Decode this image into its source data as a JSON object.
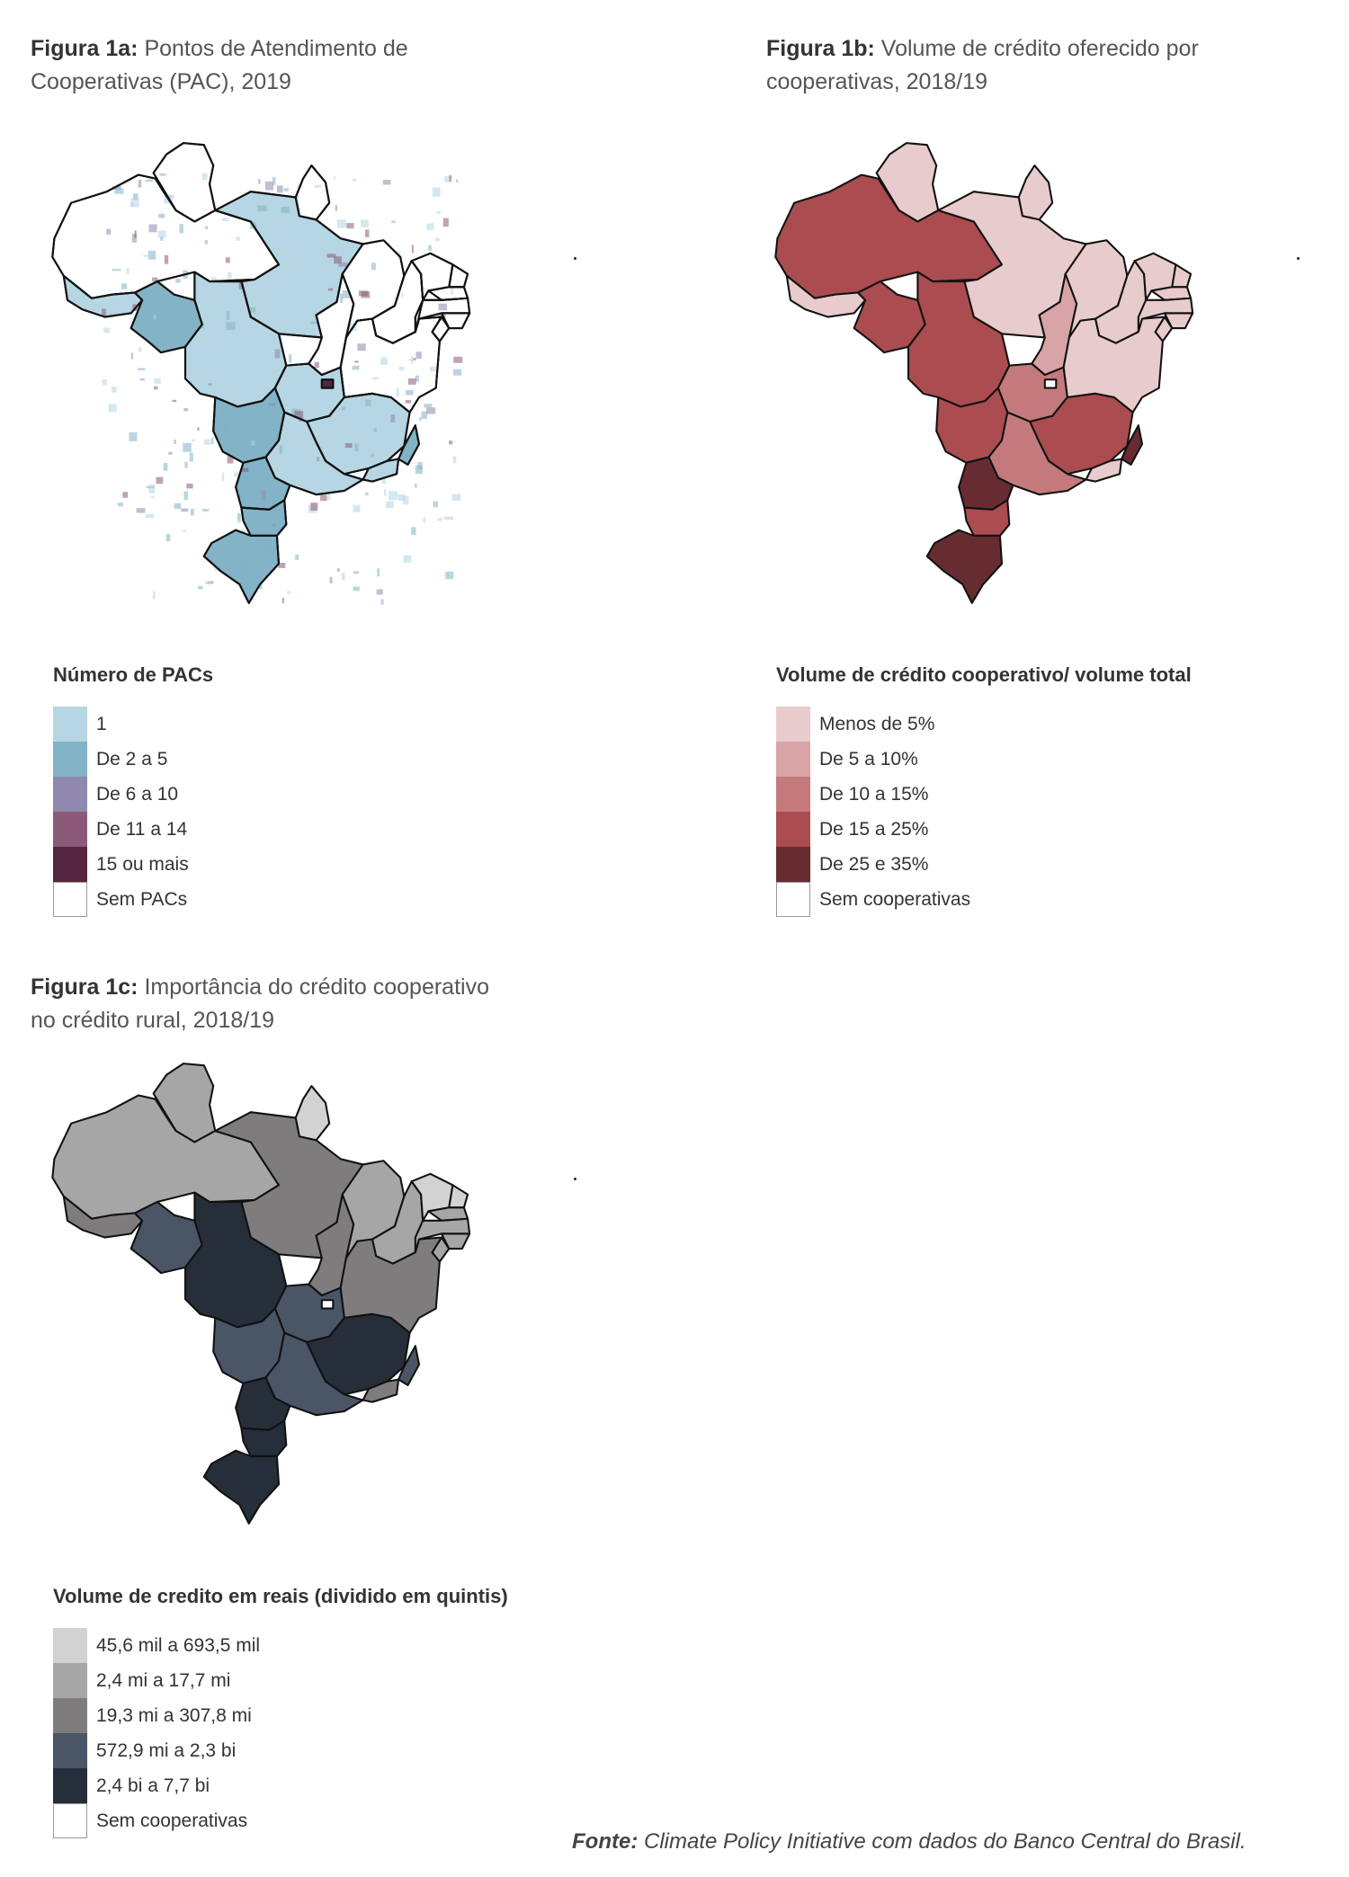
{
  "figures": [
    {
      "label": "Figura 1a:",
      "title_line1": "Pontos de Atendimento de",
      "title_line2": "Cooperativas (PAC), 2019",
      "legend_title": "Número de PACs",
      "legend": [
        {
          "label": "1",
          "color": "#b5d6e2"
        },
        {
          "label": "De 2 a 5",
          "color": "#82b3c6"
        },
        {
          "label": "De 6 a 10",
          "color": "#9189ad"
        },
        {
          "label": "De 11 a 14",
          "color": "#8a5a78"
        },
        {
          "label": "15 ou mais",
          "color": "#54263f"
        },
        {
          "label": "Sem PACs",
          "color": "#ffffff"
        }
      ]
    },
    {
      "label": "Figura 1b:",
      "title_line1": "Volume de crédito oferecido por",
      "title_line2": "cooperativas, 2018/19",
      "legend_title": "Volume de crédito cooperativo/ volume total",
      "legend": [
        {
          "label": "Menos de 5%",
          "color": "#e8cbcc"
        },
        {
          "label": "De 5 a 10%",
          "color": "#d8a4a6"
        },
        {
          "label": "De 10 a 15%",
          "color": "#c47a7d"
        },
        {
          "label": "De 15 a 25%",
          "color": "#aa4c50"
        },
        {
          "label": "De 25 e 35%",
          "color": "#662c31"
        },
        {
          "label": "Sem cooperativas",
          "color": "#ffffff"
        }
      ]
    },
    {
      "label": "Figura 1c:",
      "title_line1": "Importância do crédito cooperativo",
      "title_line2": "no crédito rural, 2018/19",
      "legend_title": "Volume de credito em reais (dividido em quintis)",
      "legend": [
        {
          "label": "45,6 mil a 693,5 mil",
          "color": "#d2d2d2"
        },
        {
          "label": "2,4 mi a 17,7 mi",
          "color": "#a7a6a7"
        },
        {
          "label": "19,3 mi a 307,8 mi",
          "color": "#7f7c7d"
        },
        {
          "label": "572,9 mi a 2,3 bi",
          "color": "#4a5566"
        },
        {
          "label": "2,4 bi a 7,7 bi",
          "color": "#262e3a"
        },
        {
          "label": "Sem cooperativas",
          "color": "#ffffff"
        }
      ]
    }
  ],
  "source": {
    "label": "Fonte:",
    "text": "Climate Policy Initiative com dados do Banco Central do Brasil."
  },
  "state_classes": {
    "fig1b": {
      "RR": 0,
      "AP": 0,
      "PA": 0,
      "AM": 3,
      "AC": 0,
      "RO": 3,
      "MT": 3,
      "TO": 1,
      "MA": 0,
      "PI": 0,
      "CE": 0,
      "RN": 0,
      "PB": 0,
      "PE": 0,
      "AL": 0,
      "SE": 0,
      "BA": 0,
      "GO": 2,
      "DF": 5,
      "MG": 3,
      "ES": 4,
      "MS": 3,
      "SP": 2,
      "RJ": 0,
      "PR": 4,
      "SC": 3,
      "RS": 4
    },
    "fig1c": {
      "RR": 1,
      "AP": 0,
      "PA": 2,
      "AM": 1,
      "AC": 2,
      "RO": 3,
      "MT": 4,
      "TO": 2,
      "MA": 1,
      "PI": 1,
      "CE": 0,
      "RN": 0,
      "PB": 1,
      "PE": 1,
      "AL": 1,
      "SE": 1,
      "BA": 2,
      "GO": 3,
      "DF": 5,
      "MG": 4,
      "ES": 3,
      "MS": 3,
      "SP": 3,
      "RJ": 2,
      "PR": 4,
      "SC": 4,
      "RS": 4
    },
    "fig1a": {
      "RR": 5,
      "AP": 5,
      "PA": 0,
      "AM": 5,
      "AC": 0,
      "RO": 1,
      "MT": 0,
      "TO": 5,
      "MA": 5,
      "PI": 5,
      "CE": 5,
      "RN": 5,
      "PB": 5,
      "PE": 5,
      "AL": 5,
      "SE": 5,
      "BA": 5,
      "GO": 0,
      "DF": 4,
      "MG": 0,
      "ES": 1,
      "MS": 1,
      "SP": 0,
      "RJ": 0,
      "PR": 1,
      "SC": 1,
      "RS": 1
    }
  }
}
